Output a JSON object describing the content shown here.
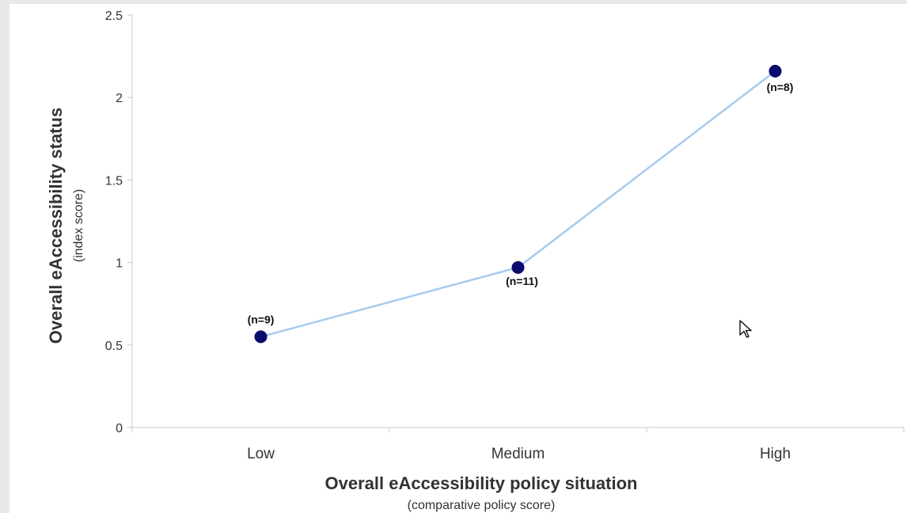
{
  "chart_data": {
    "type": "line",
    "categories": [
      "Low",
      "Medium",
      "High"
    ],
    "series": [
      {
        "values": [
          0.55,
          0.97,
          2.16
        ],
        "color": "#a6cbee",
        "marker_color": "#0a0a6e"
      }
    ],
    "annotations": [
      "(n=9)",
      "(n=11)",
      "(n=8)"
    ],
    "xlabel": "Overall eAccessibility policy situation",
    "xlabel_sub": "(comparative policy score)",
    "ylabel": "Overall eAccessibility status",
    "ylabel_sub": "(index score)",
    "ylim": [
      0,
      2.5
    ],
    "yticks": [
      "0",
      "0.5",
      "1",
      "1.5",
      "2",
      "2.5"
    ],
    "grid": false,
    "legend": "none"
  }
}
